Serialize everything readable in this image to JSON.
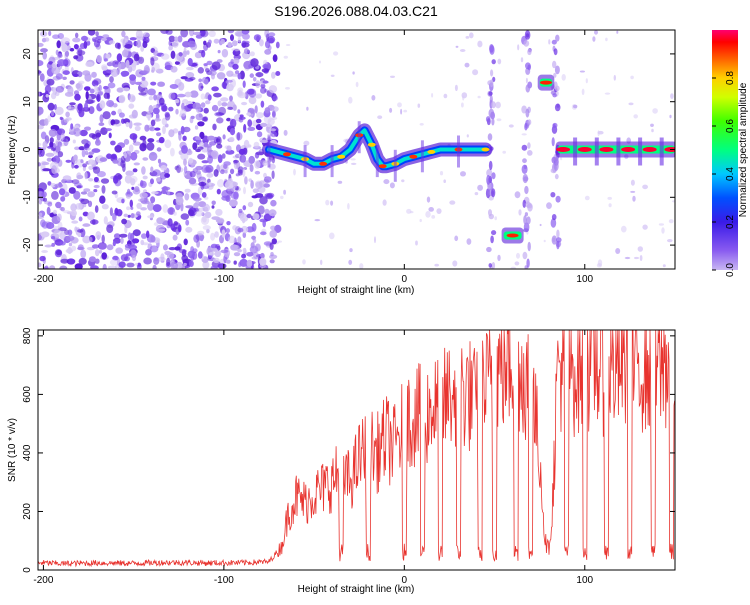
{
  "title": "S196.2026.088.04.03.C21",
  "chart_data": [
    {
      "type": "heatmap",
      "name": "spectrogram",
      "xlabel": "Height of straight line (km)",
      "ylabel": "Frequency (Hz)",
      "xlim": [
        -203,
        150
      ],
      "ylim": [
        -25,
        25
      ],
      "xticks": [
        -200,
        -100,
        0,
        100
      ],
      "yticks": [
        -20,
        -10,
        0,
        10,
        20
      ],
      "colorbar": {
        "label": "Normalized spectral amplitude",
        "range": [
          0,
          1
        ],
        "ticks": [
          0.0,
          0.2,
          0.4,
          0.6,
          0.8
        ]
      },
      "carrier_track": {
        "x": [
          -75,
          -65,
          -60,
          -55,
          -50,
          -45,
          -40,
          -35,
          -30,
          -25,
          -22,
          -18,
          -15,
          -12,
          -10,
          -5,
          0,
          5,
          10,
          15,
          20,
          30,
          40,
          45
        ],
        "freq": [
          0,
          -1,
          -1.5,
          -2,
          -3,
          -3,
          -2,
          -1.5,
          0,
          3,
          4,
          1,
          -2,
          -3.5,
          -3.5,
          -3,
          -2,
          -1.5,
          -1,
          -0.5,
          0,
          0,
          0,
          0
        ]
      },
      "segments": [
        {
          "x": [
            55,
            65
          ],
          "freq": -18
        },
        {
          "x": [
            75,
            82
          ],
          "freq": 14
        },
        {
          "x": [
            85,
            150
          ],
          "freq": 0
        }
      ]
    },
    {
      "type": "line",
      "name": "snr",
      "xlabel": "Height of straight line (km)",
      "ylabel": "SNR (10 * v/v)",
      "xlim": [
        -203,
        150
      ],
      "ylim": [
        0,
        820
      ],
      "xticks": [
        -200,
        -100,
        0,
        100
      ],
      "yticks": [
        0,
        200,
        400,
        600,
        800
      ],
      "color": "#e8332e",
      "series": {
        "x": [
          -203,
          -190,
          -170,
          -150,
          -130,
          -110,
          -90,
          -75,
          -68,
          -64,
          -60,
          -55,
          -50,
          -45,
          -40,
          -35,
          -30,
          -25,
          -20,
          -15,
          -10,
          -5,
          0,
          5,
          10,
          15,
          20,
          25,
          30,
          35,
          40,
          45,
          48,
          52,
          55,
          60,
          65,
          70,
          75,
          78,
          80,
          82,
          85,
          90,
          95,
          100,
          105,
          110,
          115,
          120,
          125,
          130,
          135,
          140,
          145,
          150
        ],
        "y": [
          25,
          22,
          24,
          23,
          26,
          24,
          25,
          28,
          80,
          200,
          250,
          230,
          260,
          280,
          300,
          340,
          300,
          380,
          420,
          400,
          450,
          420,
          500,
          530,
          520,
          560,
          540,
          600,
          620,
          610,
          560,
          620,
          650,
          680,
          700,
          720,
          680,
          650,
          400,
          100,
          70,
          200,
          700,
          710,
          690,
          700,
          720,
          700,
          690,
          710,
          700,
          720,
          700,
          690,
          710,
          700
        ]
      },
      "dropouts_x": [
        -35,
        -20,
        0,
        10,
        20,
        30,
        42,
        50,
        62,
        70,
        90,
        100,
        112,
        125,
        138,
        148
      ]
    }
  ]
}
